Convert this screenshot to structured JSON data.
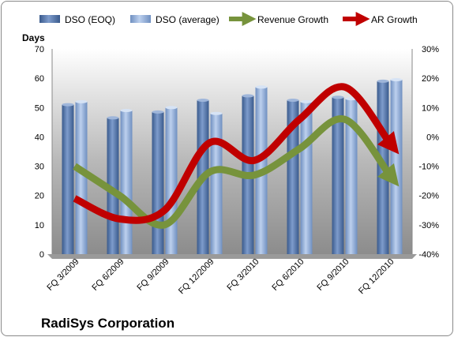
{
  "chart_data": {
    "type": "bar",
    "title": "RadiSys Corporation",
    "categories": [
      "FQ 3/2009",
      "FQ 6/2009",
      "FQ 9/2009",
      "FQ 12/2009",
      "FQ 3/2010",
      "FQ 6/2010",
      "FQ 9/2010",
      "FQ 12/2010"
    ],
    "ylabel": "Days",
    "ylim": [
      0,
      70
    ],
    "yticks": [
      0,
      10,
      20,
      30,
      40,
      50,
      60,
      70
    ],
    "y2lim": [
      -40,
      30
    ],
    "y2ticks": [
      "-40%",
      "-30%",
      "-20%",
      "-10%",
      "0%",
      "10%",
      "20%",
      "30%"
    ],
    "grid": false,
    "legend_position": "top",
    "series": [
      {
        "name": "DSO (EOQ)",
        "kind": "bar",
        "axis": "left",
        "color": "#4f6f9f",
        "values": [
          51,
          46.5,
          48.5,
          52.5,
          54,
          52.5,
          53.5,
          59
        ]
      },
      {
        "name": "DSO (average)",
        "kind": "bar",
        "axis": "left",
        "color": "#8aa9d6",
        "values": [
          52,
          49,
          50,
          48,
          57,
          52,
          53,
          59.5
        ]
      },
      {
        "name": "Revenue Growth",
        "kind": "line",
        "axis": "right",
        "color": "#77933c",
        "values": [
          -10,
          -20,
          -30,
          -12,
          -13,
          -4,
          6,
          -13
        ]
      },
      {
        "name": "AR Growth",
        "kind": "line",
        "axis": "right",
        "color": "#c00000",
        "values": [
          -21,
          -28,
          -25,
          -2,
          -8,
          6,
          17,
          -2
        ]
      }
    ]
  }
}
